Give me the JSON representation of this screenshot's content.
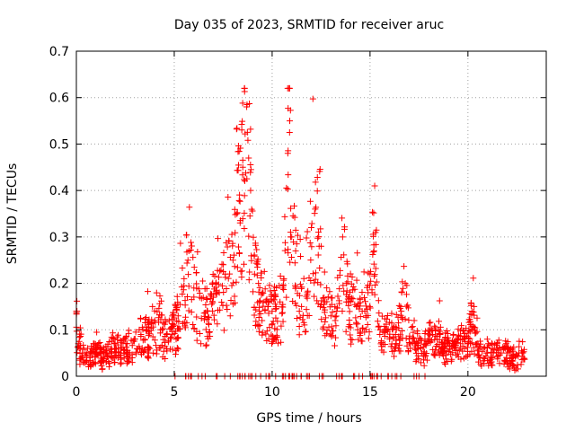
{
  "chart_data": {
    "type": "scatter",
    "title": "Day 035 of 2023, SRMTID for receiver aruc",
    "xlabel": "GPS time / hours",
    "ylabel": "SRMTID / TECUs",
    "xlim": [
      0,
      24
    ],
    "ylim": [
      0,
      0.7
    ],
    "x_ticks": [
      0,
      5,
      10,
      15,
      20
    ],
    "y_ticks": [
      0,
      0.1,
      0.2,
      0.3,
      0.4,
      0.5,
      0.6,
      0.7
    ],
    "x_tick_labels": [
      "0",
      "5",
      "10",
      "15",
      "20"
    ],
    "y_tick_labels": [
      "0",
      "0.1",
      "0.2",
      "0.3",
      "0.4",
      "0.5",
      "0.6",
      "0.7"
    ],
    "grid": true,
    "marker": "+",
    "marker_color": "#ff0000",
    "data_range_hours": [
      0,
      22.9
    ],
    "series": [
      {
        "name": "SRMTID",
        "x": [
          0.0,
          0.1,
          0.2,
          0.3,
          0.5,
          0.7,
          1.0,
          1.2,
          1.5,
          1.8,
          2.0,
          2.3,
          2.6,
          3.0,
          3.3,
          3.6,
          4.0,
          4.3,
          4.6,
          5.0,
          5.2,
          5.5,
          5.7,
          6.0,
          6.3,
          6.7,
          7.0,
          7.3,
          7.6,
          8.0,
          8.2,
          8.5,
          8.7,
          8.8,
          8.9,
          9.1,
          9.3,
          9.5,
          9.7,
          10.0,
          10.2,
          10.4,
          10.6,
          10.8,
          10.9,
          11.0,
          11.2,
          11.5,
          11.8,
          12.0,
          12.2,
          12.4,
          12.7,
          13.0,
          13.3,
          13.6,
          13.8,
          14.0,
          14.3,
          14.6,
          14.8,
          15.0,
          15.2,
          15.5,
          15.8,
          16.0,
          16.3,
          16.6,
          16.8,
          17.0,
          17.3,
          17.6,
          18.0,
          18.2,
          18.5,
          18.8,
          19.0,
          19.3,
          19.5,
          19.8,
          20.0,
          20.2,
          20.5,
          20.8,
          21.0,
          21.3,
          21.6,
          22.0,
          22.3,
          22.6,
          22.8
        ],
        "y": [
          0.14,
          0.07,
          0.06,
          0.05,
          0.05,
          0.04,
          0.06,
          0.05,
          0.05,
          0.06,
          0.06,
          0.06,
          0.07,
          0.08,
          0.09,
          0.1,
          0.12,
          0.1,
          0.09,
          0.11,
          0.13,
          0.21,
          0.25,
          0.19,
          0.17,
          0.14,
          0.17,
          0.18,
          0.22,
          0.25,
          0.35,
          0.45,
          0.58,
          0.47,
          0.4,
          0.22,
          0.2,
          0.18,
          0.16,
          0.14,
          0.15,
          0.16,
          0.21,
          0.48,
          0.55,
          0.3,
          0.27,
          0.15,
          0.18,
          0.32,
          0.36,
          0.28,
          0.16,
          0.13,
          0.14,
          0.3,
          0.2,
          0.16,
          0.15,
          0.14,
          0.13,
          0.22,
          0.27,
          0.09,
          0.1,
          0.08,
          0.09,
          0.14,
          0.2,
          0.08,
          0.07,
          0.06,
          0.08,
          0.09,
          0.1,
          0.07,
          0.07,
          0.07,
          0.08,
          0.08,
          0.07,
          0.14,
          0.07,
          0.06,
          0.05,
          0.05,
          0.06,
          0.05,
          0.04,
          0.05,
          0.05
        ]
      }
    ]
  }
}
